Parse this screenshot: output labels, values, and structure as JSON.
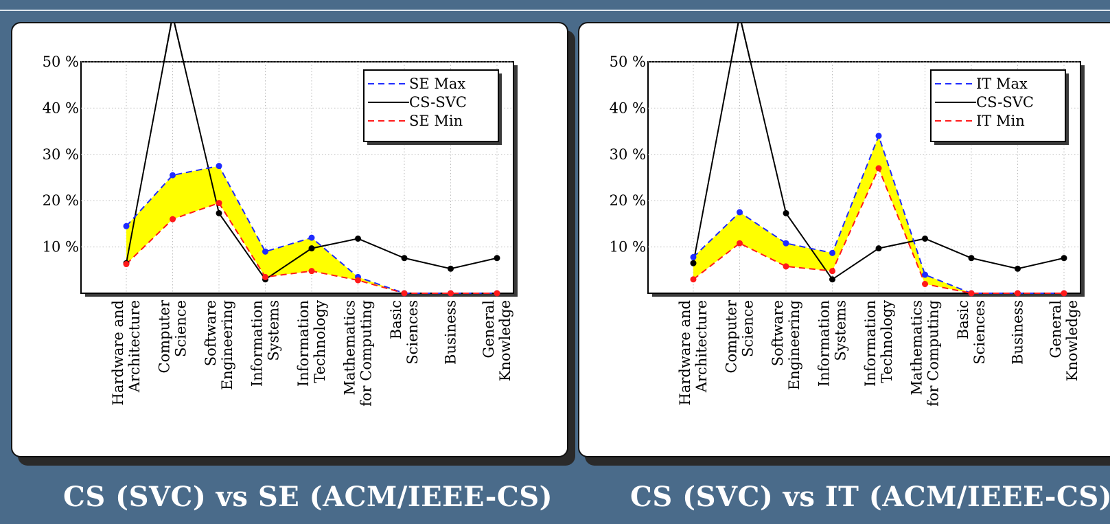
{
  "chart_data": [
    {
      "type": "line",
      "title": "CS (SVC) vs SE (ACM/IEEE-CS)",
      "categories": [
        [
          "Hardware and",
          "Architecture"
        ],
        [
          "Computer",
          "Science"
        ],
        [
          "Software",
          "Engineering"
        ],
        [
          "Information",
          "Systems"
        ],
        [
          "Information",
          "Technology"
        ],
        [
          "Mathematics",
          "for Computing"
        ],
        [
          "Basic",
          "Sciences"
        ],
        [
          "Business"
        ],
        [
          "General",
          "Knowledge"
        ]
      ],
      "y_ticks": [
        "10 %",
        "20 %",
        "30 %",
        "40 %",
        "50 %"
      ],
      "ylim": [
        0,
        50
      ],
      "legend_position": "top-right",
      "series": [
        {
          "name": "SE Max",
          "color": "#1f2bff",
          "style": "dashed",
          "values": [
            14.5,
            25.5,
            27.5,
            9,
            12,
            3.5,
            0,
            0,
            0
          ]
        },
        {
          "name": "CS-SVC",
          "color": "#000000",
          "style": "solid",
          "values": [
            6.5,
            60,
            17.3,
            3,
            9.7,
            11.8,
            7.6,
            5.3,
            7.6
          ]
        },
        {
          "name": "SE Min",
          "color": "#ff1a1a",
          "style": "dashed",
          "values": [
            6.3,
            16,
            19.5,
            3.5,
            4.8,
            2.8,
            0,
            0,
            0
          ]
        }
      ],
      "fill_between": {
        "upper": "SE Max",
        "lower": "SE Min",
        "color": "#ffff00"
      }
    },
    {
      "type": "line",
      "title": "CS (SVC) vs IT (ACM/IEEE-CS)",
      "categories": [
        [
          "Hardware and",
          "Architecture"
        ],
        [
          "Computer",
          "Science"
        ],
        [
          "Software",
          "Engineering"
        ],
        [
          "Information",
          "Systems"
        ],
        [
          "Information",
          "Technology"
        ],
        [
          "Mathematics",
          "for Computing"
        ],
        [
          "Basic",
          "Sciences"
        ],
        [
          "Business"
        ],
        [
          "General",
          "Knowledge"
        ]
      ],
      "y_ticks": [
        "10 %",
        "20 %",
        "30 %",
        "40 %",
        "50 %"
      ],
      "ylim": [
        0,
        50
      ],
      "legend_position": "top-right",
      "series": [
        {
          "name": "IT Max",
          "color": "#1f2bff",
          "style": "dashed",
          "values": [
            7.8,
            17.5,
            10.8,
            8.7,
            34,
            4,
            0,
            0,
            0
          ]
        },
        {
          "name": "CS-SVC",
          "color": "#000000",
          "style": "solid",
          "values": [
            6.5,
            60,
            17.3,
            3,
            9.7,
            11.8,
            7.6,
            5.3,
            7.6
          ]
        },
        {
          "name": "IT Min",
          "color": "#ff1a1a",
          "style": "dashed",
          "values": [
            3,
            10.8,
            5.8,
            4.8,
            27,
            2,
            0,
            0,
            0
          ]
        }
      ],
      "fill_between": {
        "upper": "IT Max",
        "lower": "IT Min",
        "color": "#ffff00"
      }
    }
  ]
}
